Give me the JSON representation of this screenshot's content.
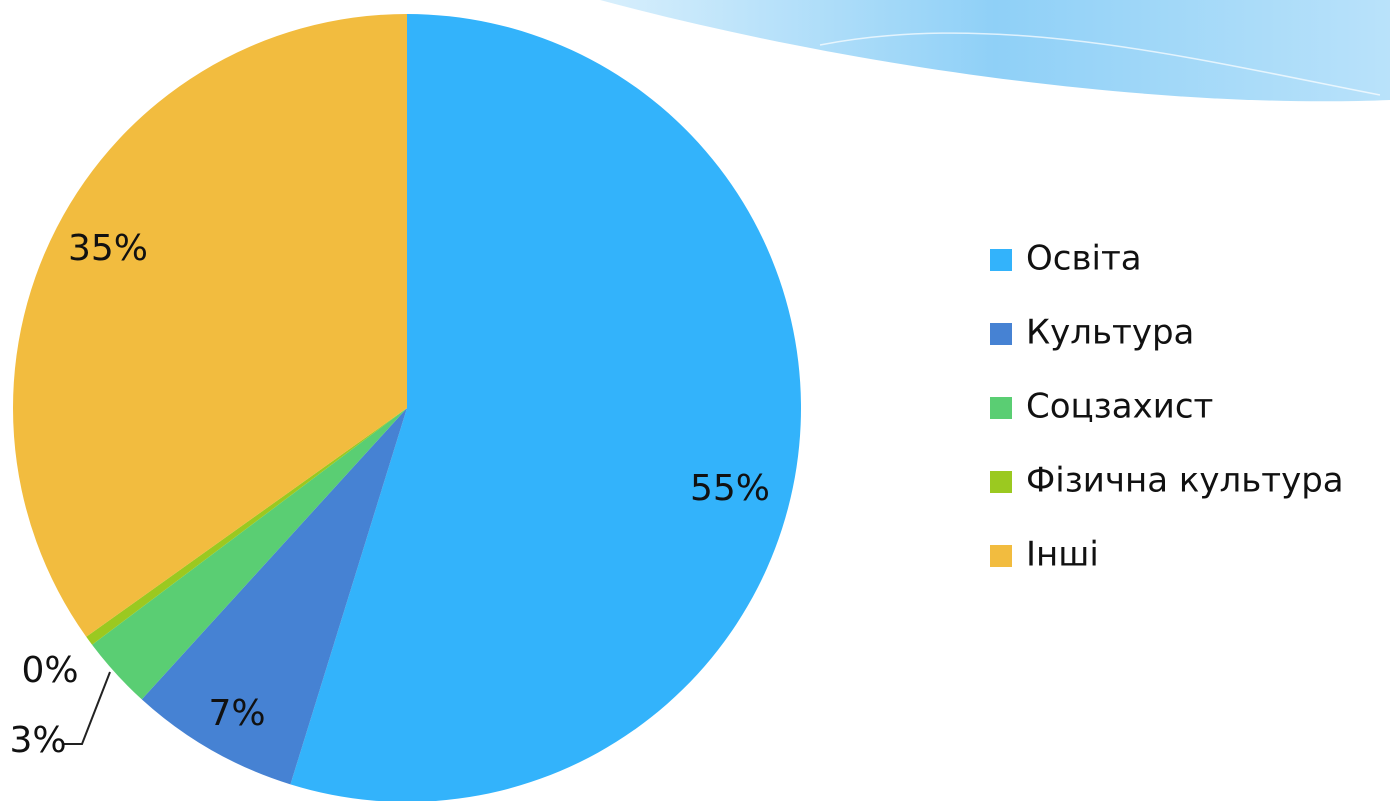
{
  "chart_data": {
    "type": "pie",
    "categories": [
      "Освіта",
      "Культура",
      "Соцзахист",
      "Фізична культура",
      "Інші"
    ],
    "values": [
      55,
      7,
      3,
      0.4,
      35
    ],
    "value_labels": [
      "55%",
      "7%",
      "3%",
      "0%",
      "35%"
    ],
    "colors": [
      "#33b3fb",
      "#4682d3",
      "#5ace73",
      "#9bc920",
      "#f2bc3f"
    ],
    "legend": "right"
  }
}
